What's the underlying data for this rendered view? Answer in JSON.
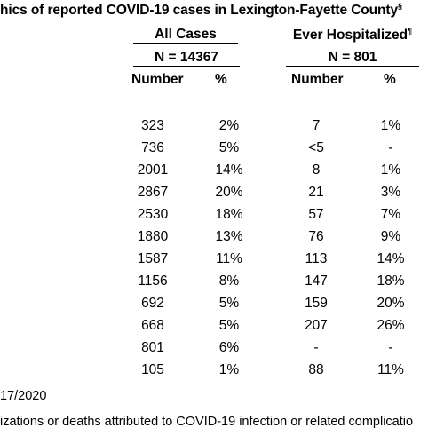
{
  "title": "hics of reported COVID-19 cases in Lexington-Fayette County",
  "title_sup": "§",
  "groups": {
    "all": {
      "label": "All Cases",
      "n": "N = 14367",
      "col_number": "Number",
      "col_pct": "%"
    },
    "hosp": {
      "label": "Ever Hospitalized",
      "sup": "¶",
      "n": "N = 801",
      "col_number": "Number",
      "col_pct": "%"
    }
  },
  "rows": [
    {
      "all_number": "323",
      "all_pct": "2%",
      "hosp_number": "7",
      "hosp_pct": "1%"
    },
    {
      "all_number": "736",
      "all_pct": "5%",
      "hosp_number": "<5",
      "hosp_pct": "-"
    },
    {
      "all_number": "2001",
      "all_pct": "14%",
      "hosp_number": "8",
      "hosp_pct": "1%"
    },
    {
      "all_number": "2867",
      "all_pct": "20%",
      "hosp_number": "21",
      "hosp_pct": "3%"
    },
    {
      "all_number": "2530",
      "all_pct": "18%",
      "hosp_number": "57",
      "hosp_pct": "7%"
    },
    {
      "all_number": "1880",
      "all_pct": "13%",
      "hosp_number": "76",
      "hosp_pct": "9%"
    },
    {
      "all_number": "1587",
      "all_pct": "11%",
      "hosp_number": "113",
      "hosp_pct": "14%"
    },
    {
      "all_number": "1156",
      "all_pct": "8%",
      "hosp_number": "147",
      "hosp_pct": "18%"
    },
    {
      "all_number": "692",
      "all_pct": "5%",
      "hosp_number": "159",
      "hosp_pct": "20%"
    },
    {
      "all_number": "668",
      "all_pct": "5%",
      "hosp_number": "207",
      "hosp_pct": "26%"
    },
    {
      "all_number": "801",
      "all_pct": "6%",
      "hosp_number": "-",
      "hosp_pct": "-"
    },
    {
      "all_number": "105",
      "all_pct": "1%",
      "hosp_number": "88",
      "hosp_pct": "11%"
    }
  ],
  "footnotes": [
    "17/2020",
    "izations or deaths attributed to COVID-19 infection or related complicatio"
  ]
}
